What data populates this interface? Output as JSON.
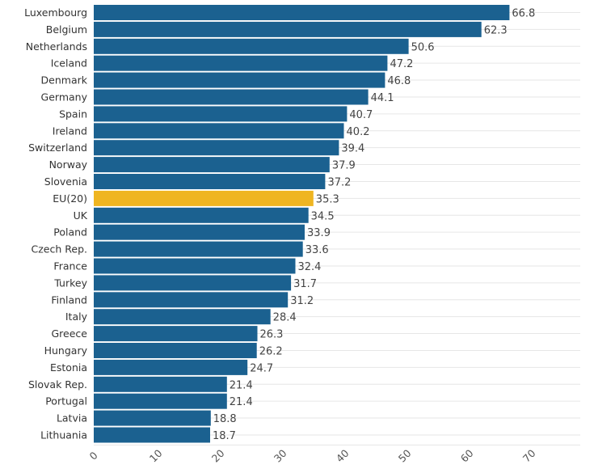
{
  "chart_data": {
    "type": "bar",
    "orientation": "horizontal",
    "title": "",
    "xlabel": "",
    "ylabel": "",
    "xlim": [
      0,
      77
    ],
    "xticks": [
      0,
      10,
      20,
      30,
      40,
      50,
      60,
      70
    ],
    "grid": true,
    "legend": "none",
    "colors": {
      "default": "#1b6190",
      "highlight": "#efb521",
      "grid": "#e6e6e6"
    },
    "highlight_category": "EU(20)",
    "categories": [
      "Luxembourg",
      "Belgium",
      "Netherlands",
      "Iceland",
      "Denmark",
      "Germany",
      "Spain",
      "Ireland",
      "Switzerland",
      "Norway",
      "Slovenia",
      "EU(20)",
      "UK",
      "Poland",
      "Czech Rep.",
      "France",
      "Turkey",
      "Finland",
      "Italy",
      "Greece",
      "Hungary",
      "Estonia",
      "Slovak Rep.",
      "Portugal",
      "Latvia",
      "Lithuania"
    ],
    "values": [
      66.8,
      62.3,
      50.6,
      47.2,
      46.8,
      44.1,
      40.7,
      40.2,
      39.4,
      37.9,
      37.2,
      35.3,
      34.5,
      33.9,
      33.6,
      32.4,
      31.7,
      31.2,
      28.4,
      26.3,
      26.2,
      24.7,
      21.4,
      21.4,
      18.8,
      18.7
    ],
    "value_labels": [
      "66.8",
      "62.3",
      "50.6",
      "47.2",
      "46.8",
      "44.1",
      "40.7",
      "40.2",
      "39.4",
      "37.9",
      "37.2",
      "35.3",
      "34.5",
      "33.9",
      "33.6",
      "32.4",
      "31.7",
      "31.2",
      "28.4",
      "26.3",
      "26.2",
      "24.7",
      "21.4",
      "21.4",
      "18.8",
      "18.7"
    ]
  }
}
